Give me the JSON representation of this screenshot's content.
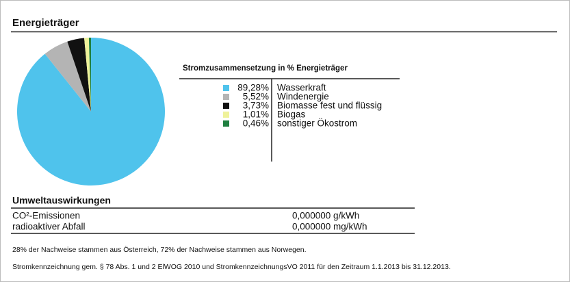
{
  "section_title": "Energieträger",
  "chart_data": {
    "type": "pie",
    "title": "Stromzusammensetzung in % Energieträger",
    "categories": [
      "Wasserkraft",
      "Windenergie",
      "Biomasse fest und flüssig",
      "Biogas",
      "sonstiger Ökostrom"
    ],
    "values": [
      89.28,
      5.52,
      3.73,
      1.01,
      0.46
    ],
    "value_labels": [
      "89,28%",
      "5,52%",
      "3,73%",
      "1,01%",
      "0,46%"
    ],
    "colors": [
      "#4fc3ec",
      "#b4b4b4",
      "#111111",
      "#eff29a",
      "#1f7f3f"
    ]
  },
  "environment": {
    "title": "Umweltauswirkungen",
    "rows": [
      [
        "CO²-Emissionen",
        "0,000000 g/kWh"
      ],
      [
        "radioaktiver Abfall",
        "0,000000 mg/kWh"
      ]
    ]
  },
  "notes": [
    "28% der Nachweise stammen aus Österreich, 72% der Nachweise stammen aus Norwegen.",
    "Stromkennzeichnung gem. § 78 Abs. 1 und 2 ElWOG 2010 und StromkennzeichnungsVO 2011 für den Zeitraum 1.1.2013 bis 31.12.2013."
  ]
}
